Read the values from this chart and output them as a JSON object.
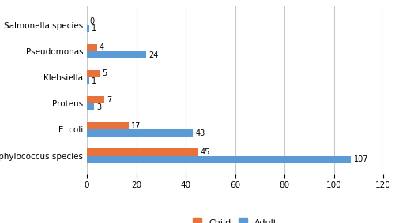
{
  "categories": [
    "Staphylococcus species",
    "E. coli",
    "Proteus",
    "Klebsiella",
    "Pseudomonas",
    "Salmonella species"
  ],
  "child_values": [
    45,
    17,
    7,
    5,
    4,
    0
  ],
  "adult_values": [
    107,
    43,
    3,
    1,
    24,
    1
  ],
  "child_color": "#E8733A",
  "adult_color": "#5B9BD5",
  "xlim": [
    0,
    120
  ],
  "xticks": [
    0,
    20,
    40,
    60,
    80,
    100,
    120
  ],
  "bar_height": 0.28,
  "label_fontsize": 7.5,
  "tick_fontsize": 7.5,
  "legend_fontsize": 8,
  "value_fontsize": 7,
  "background_color": "#ffffff",
  "grid_color": "#c8c8c8"
}
